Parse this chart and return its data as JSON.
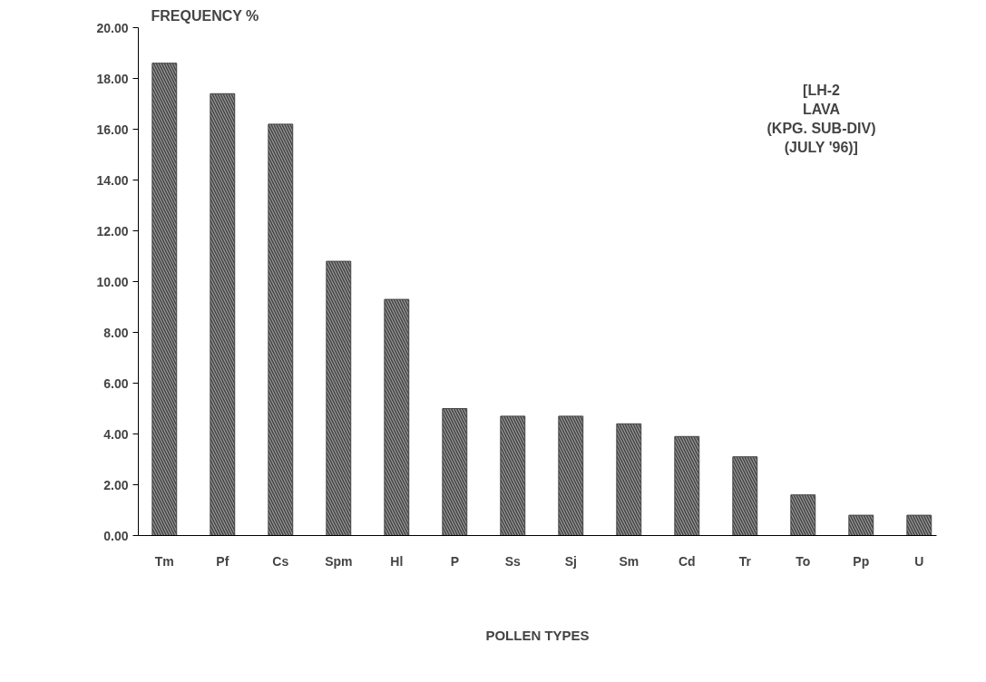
{
  "chart_data": {
    "type": "bar",
    "title": "[LH-2\nLAVA\n(KPG. SUB-DIV)\n(JULY '96)]",
    "ylabel": "FREQUENCY %",
    "xlabel": "POLLEN TYPES",
    "categories": [
      "Tm",
      "Pf",
      "Cs",
      "Spm",
      "Hl",
      "P",
      "Ss",
      "Sj",
      "Sm",
      "Cd",
      "Tr",
      "To",
      "Pp",
      "U"
    ],
    "values": [
      18.6,
      17.4,
      16.2,
      10.8,
      9.3,
      5.0,
      4.7,
      4.7,
      4.4,
      3.9,
      3.1,
      1.6,
      0.8,
      0.8
    ],
    "color": "#444444",
    "ylim": [
      0,
      20
    ],
    "yticks": [
      {
        "value": 0,
        "label": "0.00"
      },
      {
        "value": 2,
        "label": "2.00"
      },
      {
        "value": 4,
        "label": "4.00"
      },
      {
        "value": 6,
        "label": "6.00"
      },
      {
        "value": 8,
        "label": "8.00"
      },
      {
        "value": 10,
        "label": "10.00"
      },
      {
        "value": 12,
        "label": "12.00"
      },
      {
        "value": 14,
        "label": "14.00"
      },
      {
        "value": 16,
        "label": "16.00"
      },
      {
        "value": 18,
        "label": "18.00"
      },
      {
        "value": 20,
        "label": "20.00"
      }
    ],
    "grid": false
  }
}
